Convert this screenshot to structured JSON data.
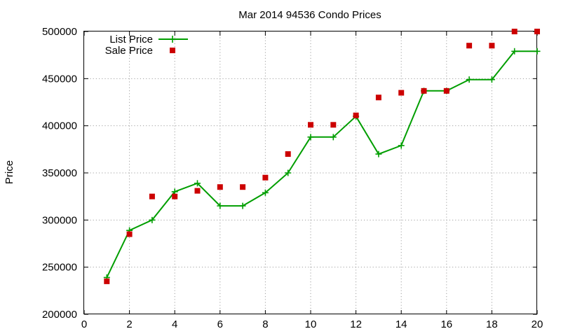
{
  "chart_data": {
    "type": "line",
    "title": "Mar 2014 94536 Condo Prices",
    "xlabel": "",
    "ylabel": "Price",
    "xlim": [
      0,
      20
    ],
    "ylim": [
      200000,
      500000
    ],
    "xticks": [
      "0",
      "2",
      "4",
      "6",
      "8",
      "10",
      "12",
      "14",
      "16",
      "18",
      "20"
    ],
    "yticks": [
      "200000",
      "250000",
      "300000",
      "350000",
      "400000",
      "450000",
      "500000"
    ],
    "grid": true,
    "legend_position": "top-left",
    "series": [
      {
        "name": "List Price",
        "style": "line-with-plus-markers",
        "color": "#009e00",
        "x": [
          1,
          2,
          3,
          4,
          5,
          6,
          7,
          8,
          9,
          10,
          11,
          12,
          13,
          14,
          15,
          16,
          17,
          18,
          19,
          20
        ],
        "y": [
          239000,
          289000,
          300000,
          330000,
          339000,
          315000,
          315000,
          329000,
          350000,
          388000,
          388000,
          410000,
          370000,
          379000,
          437000,
          437000,
          449000,
          449000,
          479000,
          479000
        ]
      },
      {
        "name": "Sale Price",
        "style": "square-markers",
        "color": "#cc0000",
        "x": [
          1,
          2,
          3,
          4,
          5,
          6,
          7,
          8,
          9,
          10,
          11,
          12,
          13,
          14,
          15,
          16,
          17,
          18,
          19,
          20
        ],
        "y": [
          235000,
          285000,
          325000,
          325000,
          331000,
          335000,
          335000,
          345000,
          370000,
          401000,
          401000,
          411000,
          430000,
          435000,
          437000,
          437000,
          485000,
          485000,
          500000,
          500000
        ]
      }
    ]
  }
}
